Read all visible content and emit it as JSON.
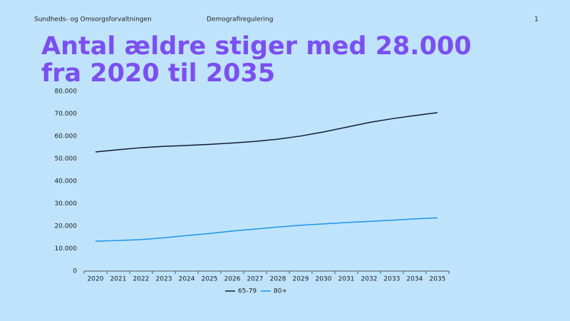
{
  "header": {
    "left": "Sundheds- og Omsorgsforvaltningen",
    "center": "Demografiregulering",
    "page": "1"
  },
  "chart_data": {
    "type": "line",
    "title": [
      "Antal ældre stiger med 28.000",
      "fra 2020 til 2035"
    ],
    "categories": [
      "2020",
      "2021",
      "2022",
      "2023",
      "2024",
      "2025",
      "2026",
      "2027",
      "2028",
      "2029",
      "2030",
      "2031",
      "2032",
      "2033",
      "2034",
      "2035"
    ],
    "series": [
      {
        "name": "65-79",
        "color": "#141a33",
        "values": [
          53000,
          54000,
          54900,
          55500,
          55900,
          56400,
          57000,
          57700,
          58700,
          60100,
          61900,
          64000,
          66100,
          67800,
          69200,
          70500
        ]
      },
      {
        "name": "80+",
        "color": "#1a96e6",
        "values": [
          13300,
          13600,
          14000,
          14800,
          15800,
          16700,
          17800,
          18700,
          19600,
          20400,
          21000,
          21600,
          22100,
          22600,
          23200,
          23700
        ]
      }
    ],
    "ylim": [
      0,
      80000
    ],
    "yticks": [
      0,
      {
        "value": 10000,
        "label": "10.000"
      },
      {
        "value": 20000,
        "label": "20.000"
      },
      {
        "value": 30000,
        "label": "30.000"
      },
      {
        "value": 40000,
        "label": "40.000"
      },
      {
        "value": 50000,
        "label": "50.000"
      },
      {
        "value": 60000,
        "label": "60.000"
      },
      {
        "value": 70000,
        "label": "70.000"
      },
      {
        "value": 80000,
        "label": "80.000"
      }
    ],
    "grid": false,
    "legend": "bottom"
  }
}
